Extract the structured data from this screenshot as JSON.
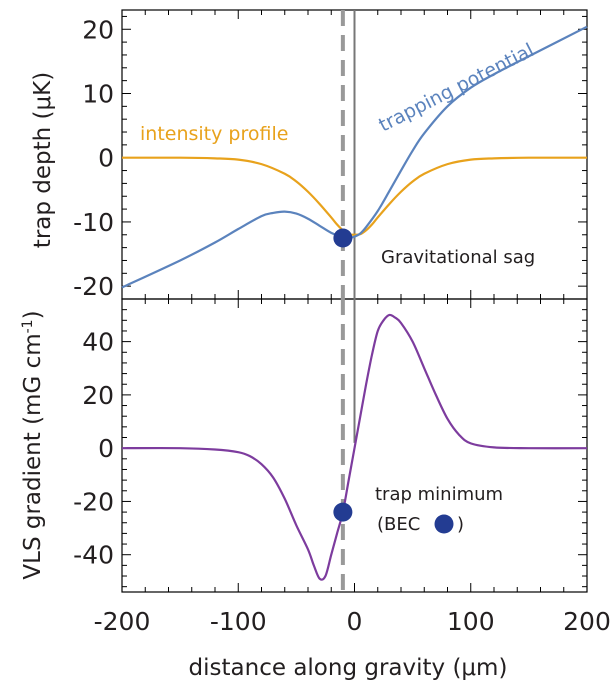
{
  "chart_data": [
    {
      "type": "line",
      "panel": "top",
      "ylabel": "trap depth (μK)",
      "xlim": [
        -200,
        200
      ],
      "ylim": [
        -22,
        23
      ],
      "yticks": [
        20,
        10,
        0,
        -10,
        -20
      ],
      "ytick_labels": [
        "20",
        "10",
        "0",
        "-10",
        "-20"
      ],
      "grid": false,
      "series": [
        {
          "name": "intensity profile",
          "color": "#e8a21c",
          "x": [
            -200,
            -150,
            -120,
            -100,
            -80,
            -60,
            -50,
            -40,
            -30,
            -20,
            -15,
            -10,
            -5,
            0,
            5,
            10,
            15,
            20,
            30,
            40,
            50,
            60,
            80,
            100,
            120,
            150,
            200
          ],
          "y": [
            0,
            0,
            -0.1,
            -0.3,
            -1.0,
            -2.5,
            -3.7,
            -5.3,
            -7.2,
            -9.3,
            -10.4,
            -11.3,
            -11.9,
            -12.0,
            -11.9,
            -11.3,
            -10.4,
            -9.3,
            -7.2,
            -5.3,
            -3.7,
            -2.5,
            -1.0,
            -0.3,
            -0.1,
            0,
            0
          ]
        },
        {
          "name": "trapping potential",
          "color": "#5b83bd",
          "x": [
            -200,
            -150,
            -120,
            -100,
            -80,
            -70,
            -60,
            -50,
            -40,
            -30,
            -20,
            -10,
            -5,
            0,
            5,
            10,
            20,
            30,
            40,
            50,
            60,
            80,
            100,
            120,
            150,
            200
          ],
          "y": [
            -20.2,
            -16.0,
            -13.2,
            -11.1,
            -9.1,
            -8.6,
            -8.4,
            -8.7,
            -9.5,
            -10.6,
            -11.7,
            -12.4,
            -12.5,
            -12.3,
            -11.8,
            -10.8,
            -8.3,
            -5.2,
            -2.0,
            1.1,
            3.8,
            8.0,
            10.9,
            13.0,
            15.8,
            20.4
          ]
        }
      ],
      "markers": [
        {
          "name": "trap minimum",
          "x": -10,
          "y": -12.5,
          "color": "#233c92"
        }
      ],
      "vlines": [
        {
          "x": -10,
          "style": "dashed",
          "color": "#999999"
        },
        {
          "x": 0,
          "style": "solid",
          "color": "#777777"
        }
      ],
      "annotations": [
        "intensity profile",
        "trapping potential",
        "Gravitational sag"
      ]
    },
    {
      "type": "line",
      "panel": "bottom",
      "xlabel": "distance along gravity (μm)",
      "ylabel": "VLS gradient (mG cm-1)",
      "xlim": [
        -200,
        200
      ],
      "ylim": [
        -54,
        56
      ],
      "xticks": [
        -200,
        -100,
        0,
        100,
        200
      ],
      "xtick_labels": [
        "-200",
        "-100",
        "0",
        "100",
        "200"
      ],
      "yticks": [
        40,
        20,
        0,
        -20,
        -40
      ],
      "ytick_labels": [
        "40",
        "20",
        "0",
        "-20",
        "-40"
      ],
      "grid": false,
      "series": [
        {
          "name": "VLS gradient",
          "color": "#7d3c9e",
          "x": [
            -200,
            -150,
            -120,
            -100,
            -90,
            -80,
            -70,
            -60,
            -50,
            -40,
            -35,
            -30,
            -25,
            -20,
            -15,
            -10,
            -5,
            0,
            5,
            10,
            15,
            20,
            25,
            30,
            35,
            40,
            50,
            60,
            70,
            80,
            90,
            100,
            120,
            150,
            200
          ],
          "y": [
            0,
            0,
            -0.5,
            -1.5,
            -3,
            -6,
            -11,
            -19,
            -29,
            -38,
            -44,
            -49,
            -48,
            -40,
            -32,
            -24,
            -12,
            0,
            12,
            24,
            35,
            44,
            48,
            50,
            49,
            47,
            40,
            30,
            20,
            11,
            5,
            1.8,
            0.3,
            0,
            0
          ]
        }
      ],
      "markers": [
        {
          "name": "trap minimum",
          "x": -10,
          "y": -24,
          "color": "#233c92"
        }
      ],
      "vlines": [
        {
          "x": -10,
          "style": "dashed",
          "color": "#999999"
        },
        {
          "x": 0,
          "style": "solid",
          "color": "#777777",
          "ymin": 2
        }
      ],
      "annotations": [
        "trap minimum",
        "(BEC",
        ")"
      ]
    }
  ],
  "labels": {
    "intensity": "intensity profile",
    "trapping": "trapping potential",
    "sag": "Gravitational sag",
    "trapmin": "trap minimum",
    "bec_open": "(BEC",
    "bec_close": ")",
    "xlabel": "distance along gravity (μm)",
    "ylabel_top": "trap depth (μK)",
    "ylabel_bottom_main": "VLS gradient (mG cm",
    "ylabel_bottom_sup": "-1",
    "ylabel_bottom_end": ")"
  },
  "colors": {
    "intensity": "#e8a21c",
    "trapping": "#5b83bd",
    "gradient": "#7d3c9e",
    "marker": "#233c92",
    "dashed": "#999999",
    "sag": "#777777",
    "axis": "#000000",
    "text": "#231f20"
  }
}
